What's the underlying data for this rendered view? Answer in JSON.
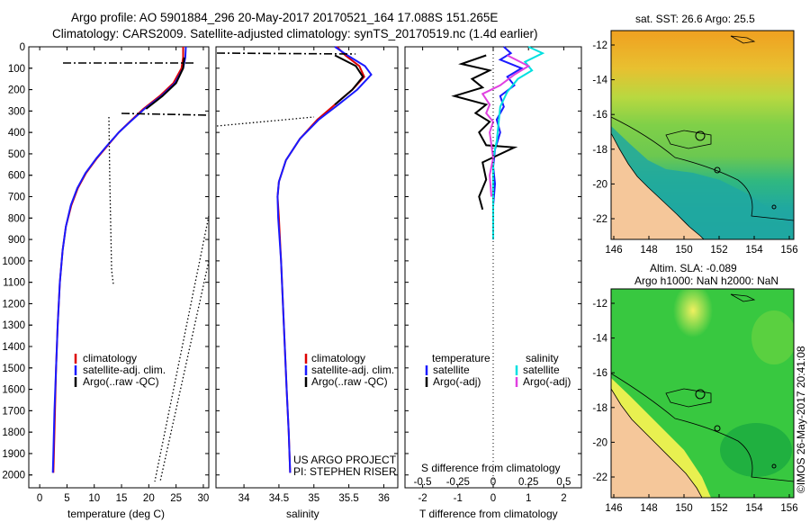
{
  "header": {
    "line1": "Argo profile: AO 5901884_296 20-May-2017 20170521_164 17.088S 151.265E",
    "line2": "Climatology: CARS2009. Satellite-adjusted climatology: synTS_20170519.nc (1.4d earlier)"
  },
  "side_stamp": "©IMOS 26-May-2017 20:41:08",
  "colors": {
    "clim": "#dd0000",
    "sat": "#1a1aff",
    "argo": "#000000",
    "sal_sat": "#00e0e0",
    "sal_argo": "#e040e0"
  },
  "chart_data": [
    {
      "type": "line",
      "name": "temperature-profile",
      "xlabel": "temperature (deg C)",
      "xlim": [
        -2,
        31
      ],
      "ylim": [
        2060,
        0
      ],
      "x_ticks": [
        "0",
        "5",
        "10",
        "15",
        "20",
        "25",
        "30"
      ],
      "x_tick_values": [
        0,
        5,
        10,
        15,
        20,
        25,
        30
      ],
      "y_ticks": [
        "0",
        "100",
        "200",
        "300",
        "400",
        "500",
        "600",
        "700",
        "800",
        "900",
        "1000",
        "1100",
        "1200",
        "1300",
        "1400",
        "1500",
        "1600",
        "1700",
        "1800",
        "1900",
        "2000"
      ],
      "y_tick_values": [
        0,
        100,
        200,
        300,
        400,
        500,
        600,
        700,
        800,
        900,
        1000,
        1100,
        1200,
        1300,
        1400,
        1500,
        1600,
        1700,
        1800,
        1900,
        2000
      ],
      "legend": [
        "climatology",
        "satellite-adj. clim.",
        "Argo(..raw -QC)"
      ],
      "legend_position": "bottom-center",
      "series": [
        {
          "name": "climatology",
          "points": [
            [
              26.3,
              0
            ],
            [
              26.3,
              50
            ],
            [
              26.0,
              100
            ],
            [
              24.5,
              170
            ],
            [
              22.0,
              230
            ],
            [
              19.0,
              290
            ],
            [
              16.5,
              350
            ],
            [
              14.5,
              400
            ],
            [
              12.5,
              460
            ],
            [
              10.5,
              520
            ],
            [
              8.5,
              590
            ],
            [
              7.0,
              660
            ],
            [
              5.8,
              740
            ],
            [
              4.8,
              840
            ],
            [
              4.2,
              950
            ],
            [
              3.7,
              1100
            ],
            [
              3.3,
              1300
            ],
            [
              3.0,
              1500
            ],
            [
              2.8,
              1700
            ],
            [
              2.6,
              1900
            ],
            [
              2.5,
              1990
            ]
          ]
        },
        {
          "name": "satellite-adj. clim.",
          "points": [
            [
              26.8,
              0
            ],
            [
              26.7,
              50
            ],
            [
              26.3,
              100
            ],
            [
              24.8,
              170
            ],
            [
              22.3,
              230
            ],
            [
              19.2,
              290
            ],
            [
              16.6,
              350
            ],
            [
              14.5,
              400
            ],
            [
              12.4,
              460
            ],
            [
              10.4,
              520
            ],
            [
              8.4,
              590
            ],
            [
              6.9,
              660
            ],
            [
              5.7,
              740
            ],
            [
              4.8,
              840
            ],
            [
              4.2,
              950
            ],
            [
              3.7,
              1100
            ],
            [
              3.3,
              1300
            ],
            [
              3.0,
              1500
            ],
            [
              2.7,
              1700
            ],
            [
              2.5,
              1900
            ],
            [
              2.4,
              1990
            ]
          ]
        },
        {
          "name": "Argo(..raw -QC)",
          "points": [
            [
              26.5,
              50
            ],
            [
              26.3,
              100
            ],
            [
              25.0,
              170
            ],
            [
              22.5,
              230
            ],
            [
              19.5,
              290
            ]
          ]
        }
      ]
    },
    {
      "type": "line",
      "name": "salinity-profile",
      "xlabel": "salinity",
      "xlim": [
        33.6,
        36.2
      ],
      "ylim": [
        2060,
        0
      ],
      "x_ticks": [
        "34",
        "34.5",
        "35",
        "35.5",
        "36"
      ],
      "x_tick_values": [
        34,
        34.5,
        35,
        35.5,
        36
      ],
      "legend": [
        "climatology",
        "satellite-adj. clim.",
        "Argo(..raw -QC)"
      ],
      "legend_position": "bottom-center",
      "annotations": [
        "US ARGO PROJECT",
        "PI: STEPHEN RISER"
      ],
      "series": [
        {
          "name": "climatology",
          "points": [
            [
              35.33,
              0
            ],
            [
              35.45,
              40
            ],
            [
              35.65,
              90
            ],
            [
              35.72,
              140
            ],
            [
              35.55,
              200
            ],
            [
              35.3,
              270
            ],
            [
              35.05,
              340
            ],
            [
              34.8,
              430
            ],
            [
              34.6,
              530
            ],
            [
              34.5,
              630
            ],
            [
              34.48,
              700
            ],
            [
              34.5,
              800
            ],
            [
              34.53,
              1000
            ],
            [
              34.57,
              1300
            ],
            [
              34.61,
              1600
            ],
            [
              34.64,
              1800
            ],
            [
              34.66,
              1990
            ]
          ]
        },
        {
          "name": "satellite-adj. clim.",
          "points": [
            [
              35.3,
              0
            ],
            [
              35.48,
              40
            ],
            [
              35.73,
              90
            ],
            [
              35.82,
              130
            ],
            [
              35.62,
              200
            ],
            [
              35.35,
              270
            ],
            [
              35.07,
              340
            ],
            [
              34.8,
              430
            ],
            [
              34.6,
              530
            ],
            [
              34.5,
              630
            ],
            [
              34.48,
              700
            ],
            [
              34.49,
              800
            ],
            [
              34.53,
              1000
            ],
            [
              34.57,
              1300
            ],
            [
              34.61,
              1600
            ],
            [
              34.64,
              1800
            ],
            [
              34.66,
              1990
            ]
          ]
        },
        {
          "name": "Argo(..raw -QC)",
          "points": [
            [
              35.3,
              40
            ],
            [
              35.6,
              90
            ],
            [
              35.7,
              140
            ],
            [
              35.55,
              200
            ],
            [
              35.3,
              270
            ]
          ]
        }
      ]
    },
    {
      "type": "line",
      "name": "difference-profile",
      "xlabel": "T difference from climatology",
      "xlabel2": "S difference from climatology",
      "xlim": [
        -2.5,
        2.5
      ],
      "ylim": [
        2060,
        0
      ],
      "x_ticks": [
        "-2",
        "-1",
        "0",
        "1",
        "2"
      ],
      "x_tick_values": [
        -2,
        -1,
        0,
        1,
        2
      ],
      "s_ticks": [
        "-0.5",
        "-0.25",
        "0",
        "0.25",
        "0.5"
      ],
      "s_tick_values": [
        -0.5,
        -0.25,
        0,
        0.25,
        0.5
      ],
      "legend_temperature": {
        "title": "temperature",
        "items": [
          "satellite",
          "Argo(-adj)"
        ]
      },
      "legend_salinity": {
        "title": "salinity",
        "items": [
          "satellite",
          "Argo(-adj)"
        ]
      },
      "series": [
        {
          "name": "temperature satellite",
          "points": [
            [
              0.3,
              0
            ],
            [
              0.5,
              30
            ],
            [
              0.2,
              60
            ],
            [
              0.8,
              100
            ],
            [
              0.4,
              140
            ],
            [
              0.6,
              180
            ],
            [
              0.2,
              230
            ],
            [
              0.3,
              280
            ],
            [
              0.1,
              340
            ],
            [
              0.2,
              400
            ],
            [
              0.05,
              480
            ],
            [
              0.0,
              560
            ],
            [
              0.05,
              640
            ],
            [
              0.0,
              740
            ],
            [
              0.0,
              830
            ],
            [
              0.0,
              900
            ]
          ]
        },
        {
          "name": "temperature Argo(-adj)",
          "points": [
            [
              -0.2,
              40
            ],
            [
              -0.9,
              80
            ],
            [
              -0.1,
              110
            ],
            [
              -0.6,
              150
            ],
            [
              -0.3,
              190
            ],
            [
              -1.1,
              230
            ],
            [
              -0.2,
              270
            ],
            [
              -0.5,
              310
            ],
            [
              -0.1,
              350
            ],
            [
              -0.4,
              400
            ],
            [
              -0.2,
              460
            ],
            [
              0.6,
              470
            ],
            [
              -0.3,
              540
            ],
            [
              -0.2,
              620
            ],
            [
              -0.4,
              700
            ],
            [
              -0.3,
              760
            ]
          ]
        },
        {
          "name": "salinity satellite",
          "points": [
            [
              1.0,
              0
            ],
            [
              1.4,
              30
            ],
            [
              0.9,
              70
            ],
            [
              1.1,
              110
            ],
            [
              0.7,
              150
            ],
            [
              0.4,
              210
            ],
            [
              0.2,
              280
            ],
            [
              0.15,
              360
            ],
            [
              0.1,
              440
            ],
            [
              0.0,
              520
            ],
            [
              0.0,
              600
            ],
            [
              0.0,
              700
            ],
            [
              0.0,
              800
            ],
            [
              0.0,
              900
            ]
          ]
        },
        {
          "name": "salinity Argo(-adj)",
          "points": [
            [
              0.4,
              40
            ],
            [
              1.0,
              90
            ],
            [
              0.6,
              130
            ],
            [
              0.2,
              180
            ],
            [
              -0.3,
              220
            ],
            [
              -0.1,
              270
            ],
            [
              -0.2,
              310
            ],
            [
              0.0,
              350
            ],
            [
              -0.1,
              400
            ],
            [
              0.0,
              520
            ],
            [
              -0.1,
              600
            ],
            [
              -0.05,
              700
            ]
          ]
        }
      ]
    },
    {
      "type": "heatmap",
      "name": "sst-map",
      "title": "sat. SST: 26.6  Argo: 25.5",
      "x_ticks": [
        "146",
        "148",
        "150",
        "152",
        "154",
        "156"
      ],
      "y_ticks": [
        "-12",
        "-14",
        "-16",
        "-18",
        "-20",
        "-22"
      ],
      "marker": {
        "lon": 151.265,
        "lat": -17.088
      }
    },
    {
      "type": "heatmap",
      "name": "sla-map",
      "title1": "Altim. SLA: -0.089",
      "title2": "Argo h1000: NaN h2000: NaN",
      "x_ticks": [
        "146",
        "148",
        "150",
        "152",
        "154",
        "156"
      ],
      "y_ticks": [
        "-12",
        "-14",
        "-16",
        "-18",
        "-20",
        "-22"
      ],
      "marker": {
        "lon": 151.265,
        "lat": -17.088
      }
    }
  ]
}
